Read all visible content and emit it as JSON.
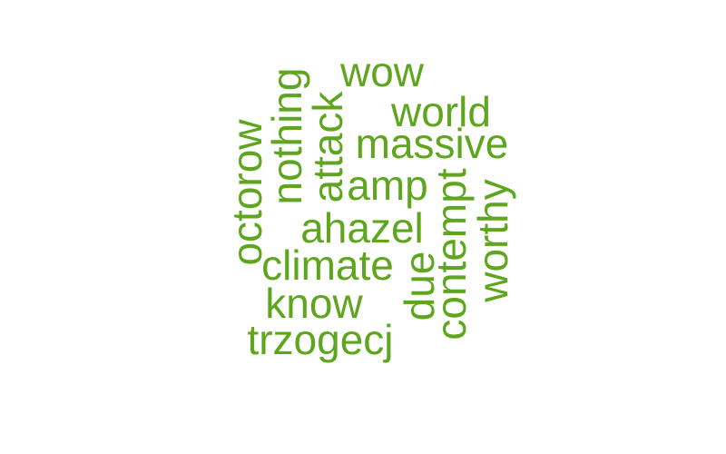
{
  "style": {
    "word_color": "#5ea61e",
    "background": "#ffffff"
  },
  "words": [
    {
      "text": "wow",
      "orientation": "horizontal"
    },
    {
      "text": "world",
      "orientation": "horizontal"
    },
    {
      "text": "massive",
      "orientation": "horizontal"
    },
    {
      "text": "amp",
      "orientation": "horizontal"
    },
    {
      "text": "ahazel",
      "orientation": "horizontal"
    },
    {
      "text": "climate",
      "orientation": "horizontal"
    },
    {
      "text": "know",
      "orientation": "horizontal"
    },
    {
      "text": "trzogecj",
      "orientation": "horizontal"
    },
    {
      "text": "octorow",
      "orientation": "vertical"
    },
    {
      "text": "nothing",
      "orientation": "vertical"
    },
    {
      "text": "attack",
      "orientation": "vertical"
    },
    {
      "text": "due",
      "orientation": "vertical"
    },
    {
      "text": "contempt",
      "orientation": "vertical"
    },
    {
      "text": "worthy",
      "orientation": "vertical"
    }
  ]
}
